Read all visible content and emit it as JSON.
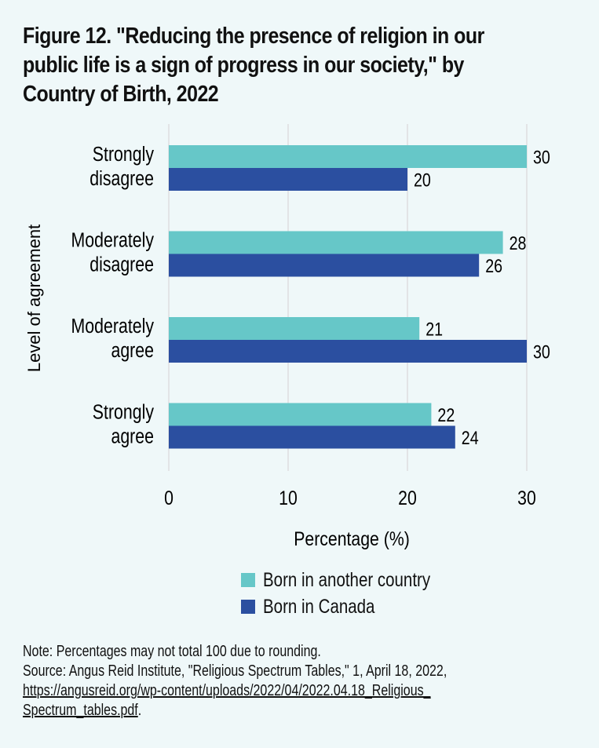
{
  "title": "Figure 12. \"Reducing the presence of religion in our public life is a sign of progress in our society,\" by Country of Birth, 2022",
  "title_lines": [
    "Figure 12. \"Reducing the presence of religion in our",
    "public life is a sign of progress in our society,\" by",
    "Country of Birth, 2022"
  ],
  "colors": {
    "born_another_country": "#66c7c8",
    "born_canada": "#2b4fa0",
    "grid": "#e2e4e6",
    "background": "#eff8f9"
  },
  "chart_data": {
    "type": "bar",
    "orientation": "horizontal",
    "title": "Figure 12. \"Reducing the presence of religion in our public life is a sign of progress in our society,\" by Country of Birth, 2022",
    "categories": [
      "Strongly disagree",
      "Moderately disagree",
      "Moderately agree",
      "Strongly agree"
    ],
    "category_lines": [
      [
        "Strongly",
        "disagree"
      ],
      [
        "Moderately",
        "disagree"
      ],
      [
        "Moderately",
        "agree"
      ],
      [
        "Strongly",
        "agree"
      ]
    ],
    "series": [
      {
        "name": "Born in another country",
        "values": [
          30,
          28,
          21,
          22
        ]
      },
      {
        "name": "Born in Canada",
        "values": [
          20,
          26,
          30,
          24
        ]
      }
    ],
    "xlabel": "Percentage (%)",
    "ylabel": "Level of agreement",
    "xlim": [
      0,
      30
    ],
    "xticks": [
      0,
      10,
      20,
      30
    ],
    "grid": true,
    "legend_position": "bottom"
  },
  "notes": {
    "note": "Note: Percentages may not total 100 due to rounding.",
    "source": "Source: Angus Reid Institute, \"Religious Spectrum Tables,\" 1, April 18, 2022,",
    "link_line1": "https://angusreid.org/wp-content/uploads/2022/04/2022.04.18_Religious_",
    "link_line2": "Spectrum_tables.pdf",
    "link_suffix": "."
  }
}
